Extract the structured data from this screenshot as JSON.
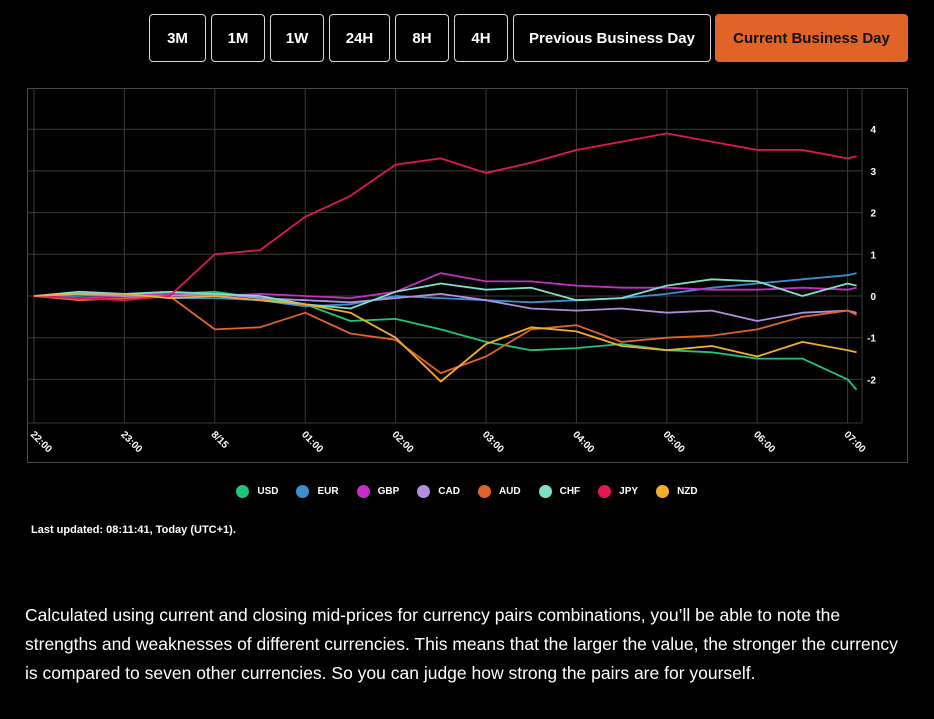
{
  "range_tabs": [
    {
      "label": "3M",
      "active": false
    },
    {
      "label": "1M",
      "active": false
    },
    {
      "label": "1W",
      "active": false
    },
    {
      "label": "24H",
      "active": false
    },
    {
      "label": "8H",
      "active": false
    },
    {
      "label": "4H",
      "active": false
    },
    {
      "label": "Previous Business Day",
      "active": false
    },
    {
      "label": "Current Business Day",
      "active": true
    }
  ],
  "colors": {
    "accent": "#e06327",
    "background": "#000000",
    "grid": "#4a4a4a"
  },
  "chart_data": {
    "type": "line",
    "x": [
      "22:00",
      "23:00",
      "8/15",
      "01:00",
      "02:00",
      "03:00",
      "04:00",
      "05:00",
      "06:00",
      "07:00"
    ],
    "ylim": [
      -3,
      5
    ],
    "yticks": [
      4,
      3,
      2,
      1,
      0,
      -1,
      -2
    ],
    "grid": true,
    "legend_position": "bottom",
    "series": [
      {
        "name": "USD",
        "color": "#1fc67a",
        "points": [
          [
            0,
            0
          ],
          [
            0.5,
            0.05
          ],
          [
            1,
            0.05
          ],
          [
            1.5,
            0.05
          ],
          [
            2,
            0.1
          ],
          [
            2.5,
            -0.05
          ],
          [
            3,
            -0.2
          ],
          [
            3.5,
            -0.6
          ],
          [
            4,
            -0.55
          ],
          [
            4.5,
            -0.8
          ],
          [
            5,
            -1.1
          ],
          [
            5.5,
            -1.3
          ],
          [
            6,
            -1.25
          ],
          [
            6.5,
            -1.15
          ],
          [
            7,
            -1.3
          ],
          [
            7.5,
            -1.35
          ],
          [
            8,
            -1.5
          ],
          [
            8.5,
            -1.5
          ],
          [
            9,
            -2
          ],
          [
            9.1,
            -2.25
          ]
        ]
      },
      {
        "name": "EUR",
        "color": "#3a8fd0",
        "points": [
          [
            0,
            0
          ],
          [
            0.5,
            0
          ],
          [
            1,
            0.05
          ],
          [
            1.5,
            -0.05
          ],
          [
            2,
            -0.05
          ],
          [
            2.5,
            -0.1
          ],
          [
            3,
            -0.25
          ],
          [
            3.5,
            -0.2
          ],
          [
            4,
            0
          ],
          [
            4.5,
            -0.05
          ],
          [
            5,
            -0.1
          ],
          [
            5.5,
            -0.15
          ],
          [
            6,
            -0.1
          ],
          [
            6.5,
            -0.05
          ],
          [
            7,
            0.05
          ],
          [
            7.5,
            0.2
          ],
          [
            8,
            0.3
          ],
          [
            8.5,
            0.4
          ],
          [
            9,
            0.5
          ],
          [
            9.1,
            0.55
          ]
        ]
      },
      {
        "name": "GBP",
        "color": "#c62fc5",
        "points": [
          [
            0,
            0
          ],
          [
            0.5,
            -0.05
          ],
          [
            1,
            0
          ],
          [
            1.5,
            0.05
          ],
          [
            2,
            0
          ],
          [
            2.5,
            0.05
          ],
          [
            3,
            0
          ],
          [
            3.5,
            -0.05
          ],
          [
            4,
            0.1
          ],
          [
            4.5,
            0.55
          ],
          [
            5,
            0.35
          ],
          [
            5.5,
            0.35
          ],
          [
            6,
            0.25
          ],
          [
            6.5,
            0.2
          ],
          [
            7,
            0.2
          ],
          [
            7.5,
            0.15
          ],
          [
            8,
            0.15
          ],
          [
            8.5,
            0.2
          ],
          [
            9,
            0.15
          ],
          [
            9.1,
            0.2
          ]
        ]
      },
      {
        "name": "CAD",
        "color": "#b18ee0",
        "points": [
          [
            0,
            0
          ],
          [
            0.5,
            0.05
          ],
          [
            1,
            0
          ],
          [
            1.5,
            0
          ],
          [
            2,
            0.05
          ],
          [
            2.5,
            -0.05
          ],
          [
            3,
            -0.1
          ],
          [
            3.5,
            -0.15
          ],
          [
            4,
            -0.05
          ],
          [
            4.5,
            0.05
          ],
          [
            5,
            -0.1
          ],
          [
            5.5,
            -0.3
          ],
          [
            6,
            -0.35
          ],
          [
            6.5,
            -0.3
          ],
          [
            7,
            -0.4
          ],
          [
            7.5,
            -0.35
          ],
          [
            8,
            -0.6
          ],
          [
            8.5,
            -0.4
          ],
          [
            9,
            -0.35
          ],
          [
            9.1,
            -0.4
          ]
        ]
      },
      {
        "name": "AUD",
        "color": "#e06327",
        "points": [
          [
            0,
            0
          ],
          [
            0.5,
            -0.1
          ],
          [
            1,
            -0.05
          ],
          [
            1.5,
            0
          ],
          [
            2,
            -0.8
          ],
          [
            2.5,
            -0.75
          ],
          [
            3,
            -0.4
          ],
          [
            3.5,
            -0.9
          ],
          [
            4,
            -1.05
          ],
          [
            4.5,
            -1.85
          ],
          [
            5,
            -1.45
          ],
          [
            5.5,
            -0.8
          ],
          [
            6,
            -0.7
          ],
          [
            6.5,
            -1.1
          ],
          [
            7,
            -1.0
          ],
          [
            7.5,
            -0.95
          ],
          [
            8,
            -0.8
          ],
          [
            8.5,
            -0.5
          ],
          [
            9,
            -0.35
          ],
          [
            9.1,
            -0.45
          ]
        ]
      },
      {
        "name": "CHF",
        "color": "#7fe0c8",
        "points": [
          [
            0,
            0
          ],
          [
            0.5,
            0.1
          ],
          [
            1,
            0.05
          ],
          [
            1.5,
            0.1
          ],
          [
            2,
            0.05
          ],
          [
            2.5,
            0
          ],
          [
            3,
            -0.2
          ],
          [
            3.5,
            -0.3
          ],
          [
            4,
            0.1
          ],
          [
            4.5,
            0.3
          ],
          [
            5,
            0.15
          ],
          [
            5.5,
            0.2
          ],
          [
            6,
            -0.1
          ],
          [
            6.5,
            -0.05
          ],
          [
            7,
            0.25
          ],
          [
            7.5,
            0.4
          ],
          [
            8,
            0.35
          ],
          [
            8.5,
            0
          ],
          [
            9,
            0.3
          ],
          [
            9.1,
            0.25
          ]
        ]
      },
      {
        "name": "JPY",
        "color": "#e01752",
        "points": [
          [
            0,
            0
          ],
          [
            0.5,
            -0.05
          ],
          [
            1,
            -0.1
          ],
          [
            1.5,
            0
          ],
          [
            2,
            1.0
          ],
          [
            2.5,
            1.1
          ],
          [
            3,
            1.9
          ],
          [
            3.5,
            2.4
          ],
          [
            4,
            3.15
          ],
          [
            4.5,
            3.3
          ],
          [
            5,
            2.95
          ],
          [
            5.5,
            3.2
          ],
          [
            6,
            3.5
          ],
          [
            6.5,
            3.7
          ],
          [
            7,
            3.9
          ],
          [
            7.5,
            3.7
          ],
          [
            8,
            3.5
          ],
          [
            8.5,
            3.5
          ],
          [
            9,
            3.3
          ],
          [
            9.1,
            3.35
          ]
        ]
      },
      {
        "name": "NZD",
        "color": "#f4ad2b",
        "points": [
          [
            0,
            0
          ],
          [
            0.5,
            0.05
          ],
          [
            1,
            0.05
          ],
          [
            1.5,
            -0.05
          ],
          [
            2,
            0
          ],
          [
            2.5,
            -0.1
          ],
          [
            3,
            -0.2
          ],
          [
            3.5,
            -0.4
          ],
          [
            4,
            -1.0
          ],
          [
            4.5,
            -2.05
          ],
          [
            5,
            -1.15
          ],
          [
            5.5,
            -0.75
          ],
          [
            6,
            -0.85
          ],
          [
            6.5,
            -1.2
          ],
          [
            7,
            -1.3
          ],
          [
            7.5,
            -1.2
          ],
          [
            8,
            -1.45
          ],
          [
            8.5,
            -1.1
          ],
          [
            9,
            -1.3
          ],
          [
            9.1,
            -1.35
          ]
        ]
      }
    ]
  },
  "last_updated": "Last updated: 08:11:41, Today (UTC+1).",
  "description": "Calculated using current and closing mid-prices for currency pairs combinations, you’ll be able to note the strengths and weaknesses of different currencies. This means that the larger the value, the stronger the currency is compared to seven other currencies. So you can judge how strong the pairs are for yourself."
}
